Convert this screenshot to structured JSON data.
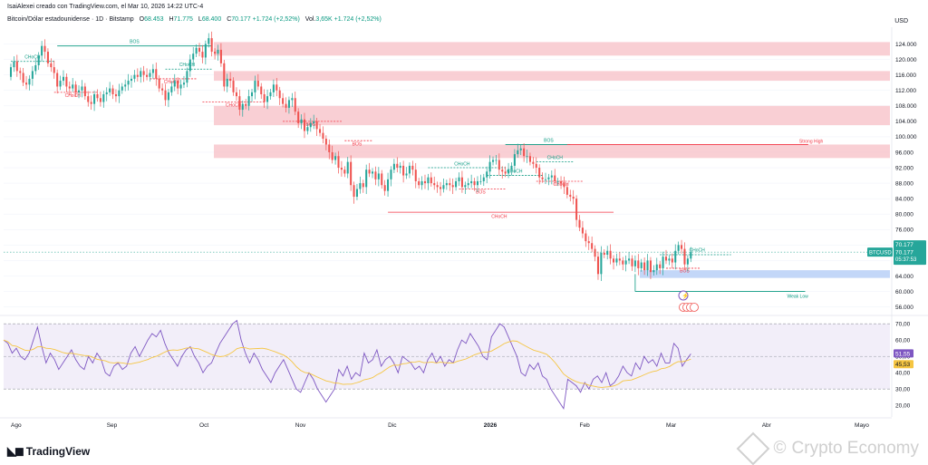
{
  "header": {
    "credit": "IsaiAlexei creado con TradingView.com, el Mar 10, 2026 14:22 UTC-4",
    "symbol": "Bitcoin/Dólar estadounidense · 1D · Bitstamp",
    "open_label": "O",
    "open": "68.453",
    "high_label": "H",
    "high": "71.775",
    "low_label": "L",
    "low": "68.400",
    "close_label": "C",
    "close": "70.177",
    "change": "+1.724 (+2,52%)",
    "vol_label": "Vol.",
    "vol": "3,65K",
    "vol_change": "+1.724 (+2,52%)"
  },
  "currency": "USD",
  "price_tag": {
    "ticker": "BTCUSD",
    "last": "70.177",
    "last2": "70.177",
    "countdown": "05:37:53"
  },
  "rsi_tags": {
    "rsi": "51,55",
    "ma": "45,53"
  },
  "branding": {
    "tradingview": "TradingView",
    "watermark": "Crypto Economy"
  },
  "colors": {
    "up": "#26a69a",
    "down": "#ef5350",
    "rsi": "#7e57c2",
    "rsi_ma": "#f5c542",
    "zone_red": "#f8c7cc",
    "zone_blue": "#bcd3f7",
    "struct_green": "#089981",
    "struct_red": "#f23645"
  },
  "chart_data": [
    {
      "type": "candlestick",
      "y_ticks": [
        124000,
        120000,
        116000,
        112000,
        108000,
        104000,
        100000,
        96000,
        92000,
        88000,
        84000,
        80000,
        76000,
        72000,
        68000,
        64000,
        60000,
        56000
      ],
      "y_tick_labels": [
        "124.000",
        "120.000",
        "116.000",
        "112.000",
        "108.000",
        "104.000",
        "100.000",
        "96.000",
        "92.000",
        "88.000",
        "84.000",
        "80.000",
        "76.000",
        "72.000",
        "68.000",
        "64.000",
        "60.000",
        "56.000"
      ],
      "x_ticks": [
        {
          "date": "2025-08-01",
          "label": "Ago"
        },
        {
          "date": "2025-09-01",
          "label": "Sep"
        },
        {
          "date": "2025-10-01",
          "label": "Oct"
        },
        {
          "date": "2025-11-01",
          "label": "Nov"
        },
        {
          "date": "2025-12-01",
          "label": "Dic"
        },
        {
          "date": "2026-01-01",
          "label": "2026"
        },
        {
          "date": "2026-02-01",
          "label": "Feb"
        },
        {
          "date": "2026-03-01",
          "label": "Mar"
        },
        {
          "date": "2026-04-01",
          "label": "Abr"
        },
        {
          "date": "2026-05-01",
          "label": "Mayo"
        }
      ],
      "closes": [
        [
          118000,
          119500,
          117000,
          116500,
          114000,
          113500,
          115000,
          117000,
          118500,
          121000,
          123500,
          122000,
          119000,
          118000,
          116500,
          113000,
          114500,
          115500,
          113000,
          112500,
          113500,
          111500,
          112000,
          113000,
          110500,
          109000,
          108500,
          111000,
          110000,
          109000
        ],
        [
          111000,
          111500,
          112500,
          111000,
          110500,
          112000,
          113000,
          113500,
          114500,
          115000,
          116000,
          115500,
          117000,
          116000,
          115500,
          116500,
          117500,
          115000,
          112500,
          112000,
          109500,
          111500,
          113000,
          114500,
          112500,
          113500,
          114000,
          117000,
          120000,
          121500
        ],
        [
          123000,
          122000,
          120500,
          124000,
          125500,
          122000,
          121500,
          122500,
          119000,
          113000,
          115000,
          114500,
          111500,
          110500,
          107000,
          108500,
          108000,
          110500,
          111500,
          114500,
          113000,
          111000,
          109000,
          110500,
          111500,
          113500,
          112000,
          110000,
          108500,
          107500,
          109500
        ],
        [
          110000,
          106500,
          103500,
          104500,
          101500,
          102500,
          103500,
          104000,
          102000,
          101000,
          99500,
          98000,
          96000,
          94000,
          95000,
          92000,
          91500,
          90500,
          93500,
          87500,
          84500,
          86500,
          88000,
          87000,
          91500,
          90500,
          91000,
          89000,
          90500,
          87500
        ],
        [
          86000,
          89000,
          91500,
          93000,
          92000,
          92500,
          90000,
          90500,
          92500,
          91500,
          88500,
          87500,
          88500,
          88000,
          89500,
          88000,
          87500,
          87000,
          86500,
          87500,
          88000,
          87500,
          87000,
          88500,
          89500,
          87000,
          87500,
          88000,
          88500,
          87500,
          88500
        ],
        [
          88500,
          89500,
          91000,
          93500,
          94000,
          94000,
          91500,
          91000,
          90500,
          91500,
          92500,
          95500,
          96500,
          97000,
          95000,
          95000,
          93500,
          93000,
          92000,
          89500,
          89000,
          89000,
          89500,
          90000,
          88500,
          88500,
          88000,
          87000,
          85000,
          84500,
          84000
        ],
        [
          78500,
          76500,
          75000,
          73000,
          72500,
          71000,
          69000,
          64500,
          70000,
          69500,
          70500,
          68500,
          67500,
          68500,
          68000,
          67000,
          68000,
          68500,
          66500,
          68000,
          66000,
          67500,
          65500,
          68000,
          65000,
          65500,
          67000,
          66000
        ],
        [
          69000,
          68000,
          68500,
          67500,
          70500,
          72000,
          71000,
          67000,
          68500,
          70177
        ]
      ],
      "annotations": {
        "bos": [
          "BOS",
          "BOS",
          "BOS",
          "BOS",
          "BOS",
          "BOS"
        ],
        "choch": [
          "CHoCH",
          "CHoCH",
          "CHoCH",
          "CHoCH",
          "CHoCH",
          "CHoCH",
          "CHoCH",
          "CHoCH",
          "CHoCH",
          "CHoCH",
          "CHoCH"
        ],
        "strong_high": "Strong High",
        "weak_low": "Weak Low"
      },
      "zones_red": [
        [
          121000,
          124500
        ],
        [
          114500,
          117000
        ],
        [
          103000,
          108000
        ],
        [
          94500,
          98000
        ]
      ],
      "zones_blue": [
        [
          63500,
          65500
        ]
      ],
      "strong_high_price": 98000,
      "weak_low_price": 60000
    },
    {
      "type": "line",
      "name": "RSI",
      "y_ticks": [
        70,
        60,
        50,
        40,
        30,
        20
      ],
      "y_tick_labels": [
        "70,00",
        "60,00",
        "50,00",
        "40,00",
        "30,00",
        "20,00"
      ],
      "band": [
        30,
        70
      ],
      "rsi_values": [
        60,
        58,
        52,
        55,
        50,
        48,
        52,
        60,
        68,
        56,
        46,
        52,
        48,
        42,
        46,
        50,
        54,
        48,
        44,
        42,
        50,
        46,
        52,
        48,
        40,
        38,
        44,
        46,
        42,
        44,
        52,
        56,
        50,
        55,
        60,
        64,
        62,
        66,
        58,
        52,
        48,
        44,
        50,
        54,
        56,
        50,
        46,
        40,
        44,
        46,
        52,
        58,
        62,
        66,
        70,
        72,
        60,
        52,
        46,
        52,
        48,
        42,
        38,
        34,
        40,
        44,
        48,
        42,
        36,
        30,
        28,
        34,
        40,
        36,
        30,
        26,
        22,
        26,
        30,
        42,
        38,
        44,
        36,
        40,
        38,
        52,
        46,
        48,
        54,
        44,
        48,
        50,
        46,
        40,
        50,
        48,
        46,
        42,
        44,
        40,
        48,
        52,
        46,
        50,
        44,
        48,
        46,
        54,
        60,
        58,
        64,
        60,
        56,
        50,
        48,
        62,
        66,
        70,
        68,
        62,
        56,
        50,
        40,
        38,
        45,
        42,
        46,
        38,
        36,
        30,
        26,
        22,
        18,
        36,
        34,
        32,
        28,
        34,
        30,
        36,
        38,
        34,
        40,
        32,
        34,
        38,
        44,
        40,
        38,
        46,
        42,
        50,
        46,
        48,
        44,
        52,
        46,
        46,
        58,
        55,
        44,
        48,
        51.55
      ]
    }
  ]
}
